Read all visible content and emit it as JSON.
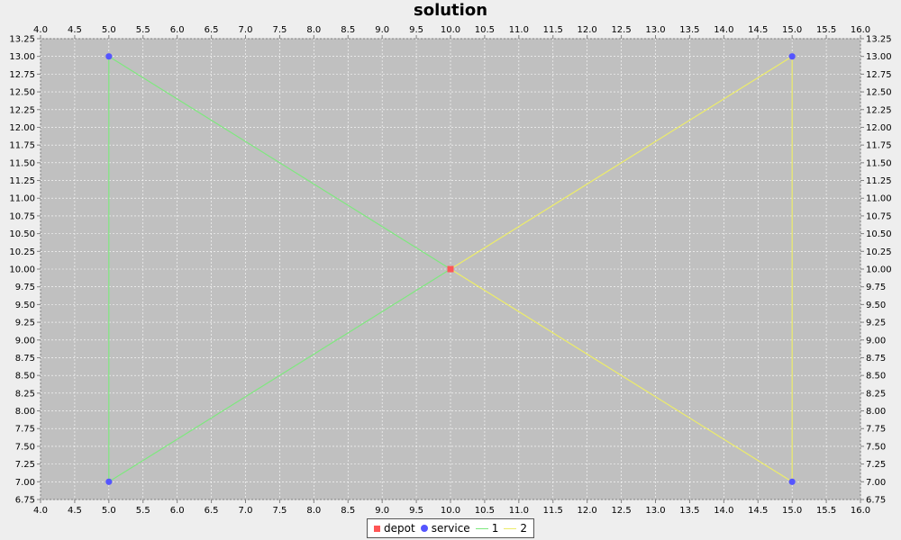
{
  "chart_data": {
    "type": "scatter",
    "title": "solution",
    "xlabel": "",
    "ylabel": "",
    "xlim": [
      4.0,
      16.0
    ],
    "ylim": [
      6.75,
      13.25
    ],
    "x_ticks": [
      "4.0",
      "4.5",
      "5.0",
      "5.5",
      "6.0",
      "6.5",
      "7.0",
      "7.5",
      "8.0",
      "8.5",
      "9.0",
      "9.5",
      "10.0",
      "10.5",
      "11.0",
      "11.5",
      "12.0",
      "12.5",
      "13.0",
      "13.5",
      "14.0",
      "14.5",
      "15.0",
      "15.5",
      "16.0"
    ],
    "y_ticks": [
      "6.75",
      "7.00",
      "7.25",
      "7.50",
      "7.75",
      "8.00",
      "8.25",
      "8.50",
      "8.75",
      "9.00",
      "9.25",
      "9.50",
      "9.75",
      "10.00",
      "10.25",
      "10.50",
      "10.75",
      "11.00",
      "11.25",
      "11.50",
      "11.75",
      "12.00",
      "12.25",
      "12.50",
      "12.75",
      "13.00",
      "13.25"
    ],
    "grid": true,
    "background_color": "#c0c0c0",
    "legend_position": "bottom",
    "series": [
      {
        "name": "depot",
        "kind": "points",
        "marker": "square",
        "color": "#ff5555",
        "points": [
          [
            10.0,
            10.0
          ]
        ]
      },
      {
        "name": "service",
        "kind": "points",
        "marker": "circle",
        "color": "#5555ff",
        "points": [
          [
            5.0,
            13.0
          ],
          [
            5.0,
            7.0
          ],
          [
            15.0,
            13.0
          ],
          [
            15.0,
            7.0
          ]
        ]
      },
      {
        "name": "1",
        "kind": "route",
        "color": "#7ee87e",
        "points": [
          [
            10.0,
            10.0
          ],
          [
            5.0,
            13.0
          ],
          [
            5.0,
            7.0
          ],
          [
            10.0,
            10.0
          ]
        ]
      },
      {
        "name": "2",
        "kind": "route",
        "color": "#ecec6a",
        "points": [
          [
            10.0,
            10.0
          ],
          [
            15.0,
            13.0
          ],
          [
            15.0,
            7.0
          ],
          [
            10.0,
            10.0
          ]
        ]
      }
    ]
  }
}
